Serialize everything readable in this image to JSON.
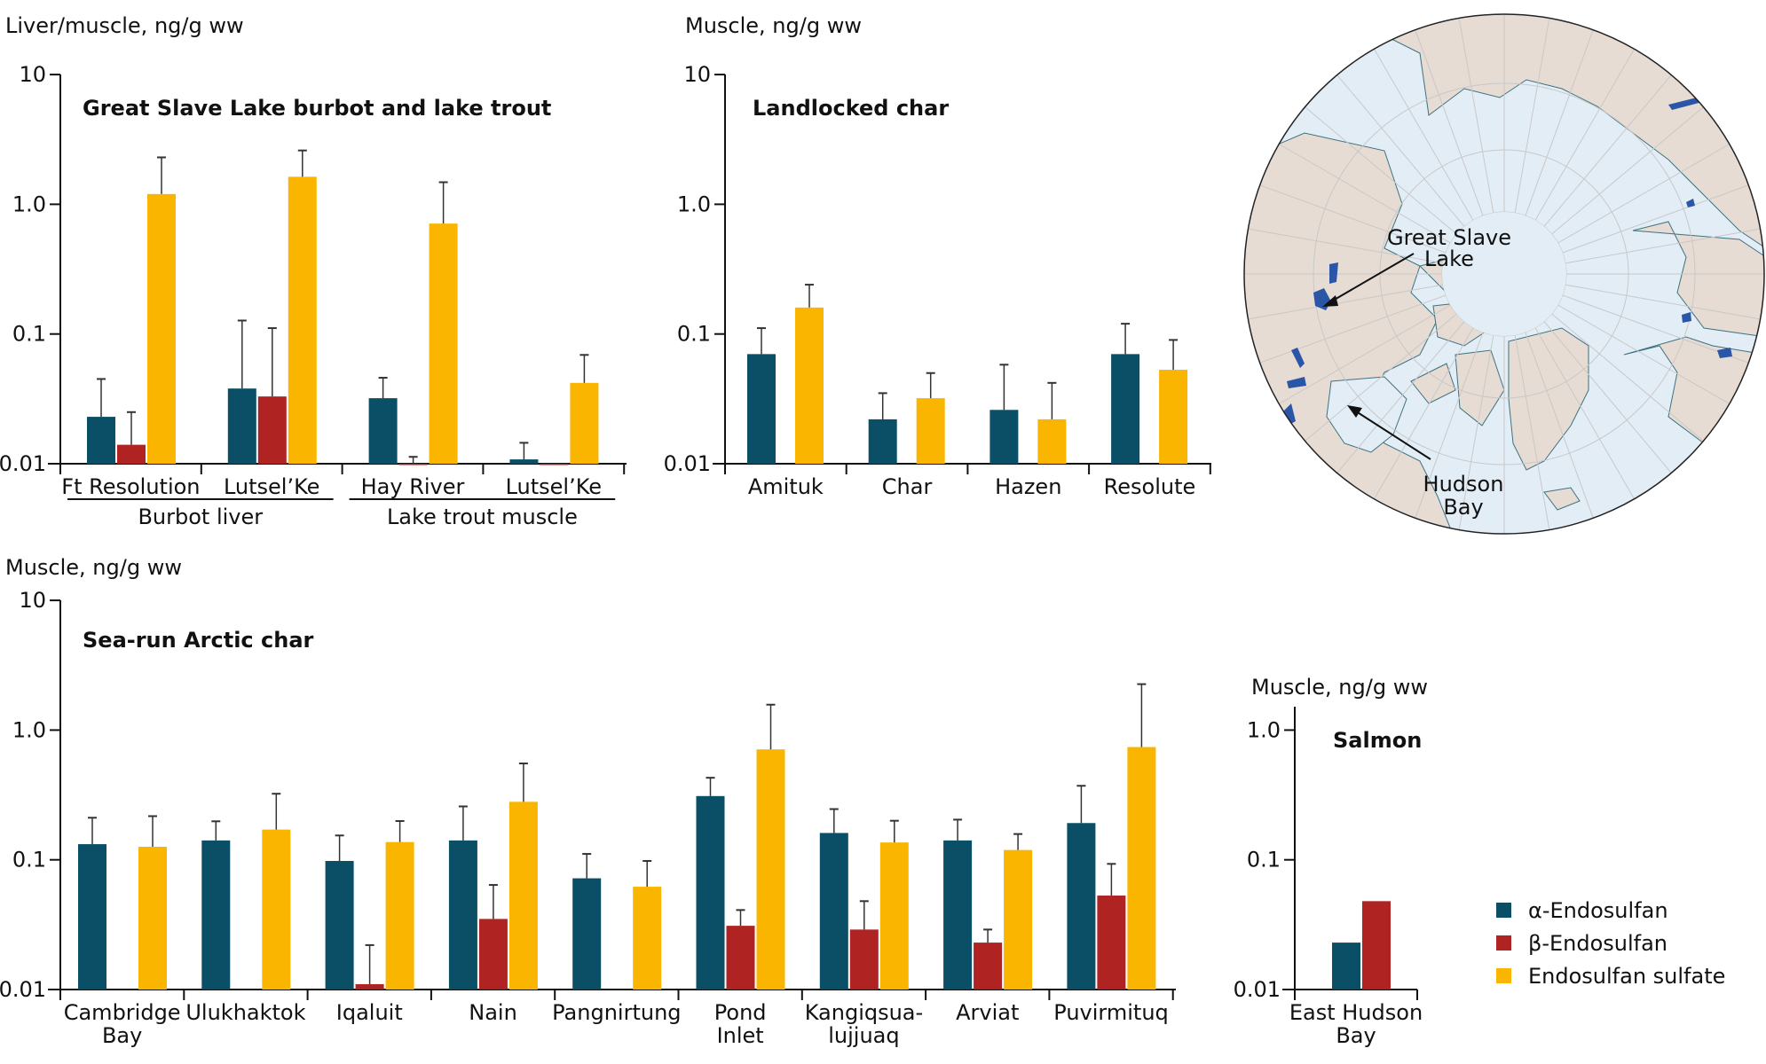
{
  "colors": {
    "alpha": "#0b4f66",
    "beta": "#b02323",
    "sulfate": "#f9b500",
    "axis": "#111111",
    "error_bar": "#333333",
    "map_ocean": "#e3edf6",
    "map_land": "#e6dcd3",
    "map_lakes": "#2b55a6",
    "map_coast": "#3e7180",
    "map_grid": "#c8c8c8"
  },
  "legend": {
    "items": [
      {
        "key": "alpha",
        "label": "α-Endosulfan"
      },
      {
        "key": "beta",
        "label": "β-Endosulfan"
      },
      {
        "key": "sulfate",
        "label": "Endosulfan sulfate"
      }
    ]
  },
  "map": {
    "labels": [
      {
        "id": "great-slave-lake",
        "lines": [
          "Great Slave",
          "Lake"
        ]
      },
      {
        "id": "hudson-bay",
        "lines": [
          "Hudson",
          "Bay"
        ]
      }
    ]
  },
  "chart_data": [
    {
      "id": "great-slave",
      "type": "bar",
      "title": "Great Slave Lake burbot and lake trout",
      "ylabel": "Liver/muscle, ng/g ww",
      "yscale": "log",
      "ylim": [
        0.01,
        10
      ],
      "yticks": [
        "10",
        "1.0",
        "0.1",
        "0.01"
      ],
      "ytick_values": [
        10,
        1,
        0.1,
        0.01
      ],
      "categories": [
        "Ft Resolution",
        "Lutsel’Ke",
        "Hay River",
        "Lutsel’Ke"
      ],
      "category_groups": [
        {
          "label": "Burbot liver",
          "span": [
            0,
            1
          ]
        },
        {
          "label": "Lake trout muscle",
          "span": [
            2,
            3
          ]
        }
      ],
      "series": [
        {
          "name": "α-Endosulfan",
          "key": "alpha",
          "values": [
            0.023,
            0.038,
            0.032,
            0.0108
          ],
          "error_upper": [
            0.045,
            0.127,
            0.046,
            0.0145
          ]
        },
        {
          "name": "β-Endosulfan",
          "key": "beta",
          "values": [
            0.014,
            0.033,
            0.01,
            0.01
          ],
          "error_upper": [
            0.025,
            0.111,
            0.0113,
            null
          ]
        },
        {
          "name": "Endosulfan sulfate",
          "key": "sulfate",
          "values": [
            1.2,
            1.63,
            0.71,
            0.042
          ],
          "error_upper": [
            2.3,
            2.6,
            1.48,
            0.069
          ]
        }
      ]
    },
    {
      "id": "landlocked",
      "type": "bar",
      "title": "Landlocked char",
      "ylabel": "Muscle, ng/g ww",
      "yscale": "log",
      "ylim": [
        0.01,
        10
      ],
      "yticks": [
        "10",
        "1.0",
        "0.1",
        "0.01"
      ],
      "ytick_values": [
        10,
        1,
        0.1,
        0.01
      ],
      "categories": [
        "Amituk",
        "Char",
        "Hazen",
        "Resolute"
      ],
      "series": [
        {
          "name": "α-Endosulfan",
          "key": "alpha",
          "values": [
            0.07,
            0.022,
            0.026,
            0.07
          ],
          "error_upper": [
            0.111,
            0.035,
            0.058,
            0.12
          ]
        },
        {
          "name": "β-Endosulfan",
          "key": "beta",
          "values": [
            null,
            null,
            null,
            null
          ],
          "error_upper": [
            null,
            null,
            null,
            null
          ]
        },
        {
          "name": "Endosulfan sulfate",
          "key": "sulfate",
          "values": [
            0.16,
            0.032,
            0.022,
            0.053
          ],
          "error_upper": [
            0.24,
            0.05,
            0.042,
            0.09
          ]
        }
      ]
    },
    {
      "id": "sea-run",
      "type": "bar",
      "title": "Sea-run Arctic char",
      "ylabel": "Muscle, ng/g ww",
      "yscale": "log",
      "ylim": [
        0.01,
        10
      ],
      "yticks": [
        "10",
        "1.0",
        "0.1",
        "0.01"
      ],
      "ytick_values": [
        10,
        1,
        0.1,
        0.01
      ],
      "categories": [
        [
          "Cambridge",
          "Bay"
        ],
        [
          "Ulukhaktok"
        ],
        [
          "Iqaluit"
        ],
        [
          "Nain"
        ],
        [
          "Pangnirtung"
        ],
        [
          "Pond",
          "Inlet"
        ],
        [
          "Kangiqsua-",
          "lujjuaq"
        ],
        [
          "Arviat"
        ],
        [
          "Puvirmituq"
        ]
      ],
      "series": [
        {
          "name": "α-Endosulfan",
          "key": "alpha",
          "values": [
            0.132,
            0.141,
            0.098,
            0.141,
            0.072,
            0.31,
            0.161,
            0.141,
            0.192
          ],
          "error_upper": [
            0.211,
            0.198,
            0.154,
            0.258,
            0.111,
            0.429,
            0.246,
            0.204,
            0.372
          ]
        },
        {
          "name": "β-Endosulfan",
          "key": "beta",
          "values": [
            null,
            null,
            0.011,
            0.035,
            null,
            0.031,
            0.029,
            0.023,
            0.053
          ],
          "error_upper": [
            null,
            null,
            0.022,
            0.064,
            null,
            0.041,
            0.048,
            0.029,
            0.093
          ]
        },
        {
          "name": "Endosulfan sulfate",
          "key": "sulfate",
          "values": [
            0.126,
            0.171,
            0.137,
            0.28,
            0.062,
            0.71,
            0.136,
            0.119,
            0.74
          ],
          "error_upper": [
            0.217,
            0.323,
            0.199,
            0.553,
            0.098,
            1.57,
            0.2,
            0.158,
            2.26
          ]
        }
      ]
    },
    {
      "id": "salmon",
      "type": "bar",
      "title": "Salmon",
      "ylabel": "Muscle, ng/g ww",
      "yscale": "log",
      "ylim": [
        0.01,
        1.2
      ],
      "yticks": [
        "1.0",
        "0.1",
        "0.01"
      ],
      "ytick_values": [
        1,
        0.1,
        0.01
      ],
      "categories": [
        [
          "East Hudson",
          "Bay"
        ]
      ],
      "series": [
        {
          "name": "α-Endosulfan",
          "key": "alpha",
          "values": [
            0.023
          ],
          "error_upper": [
            null
          ]
        },
        {
          "name": "β-Endosulfan",
          "key": "beta",
          "values": [
            0.048
          ],
          "error_upper": [
            null
          ]
        },
        {
          "name": "Endosulfan sulfate",
          "key": "sulfate",
          "values": [
            null
          ],
          "error_upper": [
            null
          ]
        }
      ]
    }
  ]
}
